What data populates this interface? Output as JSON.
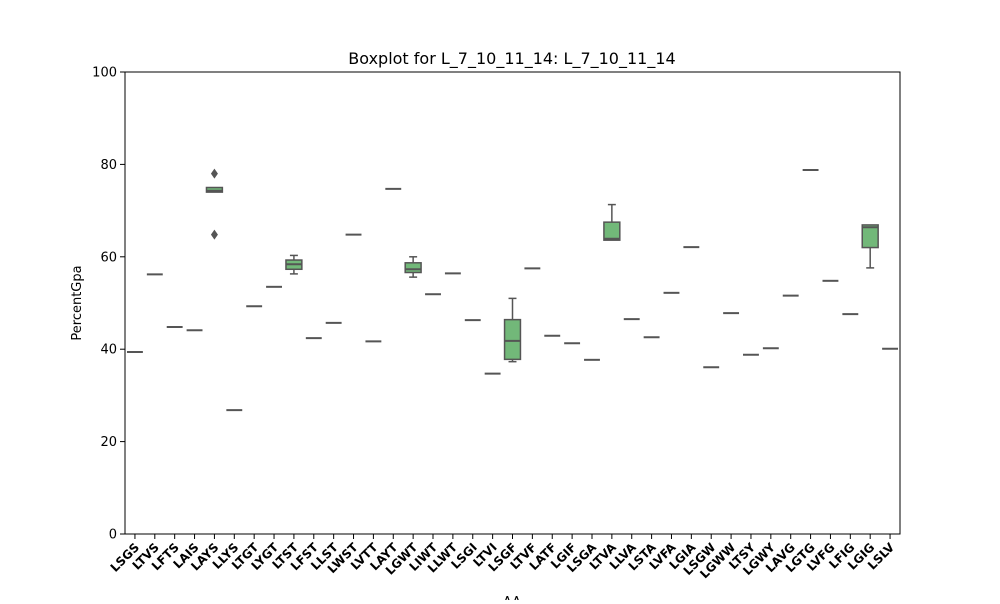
{
  "chart_data": {
    "type": "box",
    "title": "Boxplot for L_7_10_11_14: L_7_10_11_14",
    "xlabel": "AA",
    "ylabel": "PercentGpa",
    "ylim": [
      0,
      100
    ],
    "yticks": [
      0,
      20,
      40,
      60,
      80,
      100
    ],
    "grid": false,
    "box_color": "#72b879",
    "line_color": "#555555",
    "categories": [
      "LSGS",
      "LTVS",
      "LFTS",
      "LAIS",
      "LAYS",
      "LLYS",
      "LTGT",
      "LYGT",
      "LTST",
      "LFST",
      "LLST",
      "LWST",
      "LVTT",
      "LAYT",
      "LGWT",
      "LIWT",
      "LLWT",
      "LSGI",
      "LTVI",
      "LSGF",
      "LTVF",
      "LATF",
      "LGIF",
      "LSGA",
      "LTVA",
      "LLVA",
      "LSTA",
      "LVFA",
      "LGIA",
      "LSGW",
      "LGWW",
      "LTSY",
      "LGWY",
      "LAVG",
      "LGTG",
      "LVFG",
      "LFIG",
      "LGIG",
      "LSLV"
    ],
    "boxes": [
      {
        "q1": 39.4,
        "median": 39.4,
        "q3": 39.4,
        "whislo": 39.4,
        "whishi": 39.4,
        "fliers": []
      },
      {
        "q1": 56.2,
        "median": 56.2,
        "q3": 56.2,
        "whislo": 56.2,
        "whishi": 56.2,
        "fliers": []
      },
      {
        "q1": 44.8,
        "median": 44.8,
        "q3": 44.8,
        "whislo": 44.8,
        "whishi": 44.8,
        "fliers": []
      },
      {
        "q1": 44.1,
        "median": 44.1,
        "q3": 44.1,
        "whislo": 44.1,
        "whishi": 44.1,
        "fliers": []
      },
      {
        "q1": 74.0,
        "median": 74.3,
        "q3": 75.0,
        "whislo": 74.0,
        "whishi": 75.0,
        "fliers": [
          78.0,
          64.8
        ]
      },
      {
        "q1": 26.8,
        "median": 26.8,
        "q3": 26.8,
        "whislo": 26.8,
        "whishi": 26.8,
        "fliers": []
      },
      {
        "q1": 49.3,
        "median": 49.3,
        "q3": 49.3,
        "whislo": 49.3,
        "whishi": 49.3,
        "fliers": []
      },
      {
        "q1": 53.5,
        "median": 53.5,
        "q3": 53.5,
        "whislo": 53.5,
        "whishi": 53.5,
        "fliers": []
      },
      {
        "q1": 57.3,
        "median": 58.4,
        "q3": 59.3,
        "whislo": 56.3,
        "whishi": 60.3,
        "fliers": []
      },
      {
        "q1": 42.4,
        "median": 42.4,
        "q3": 42.4,
        "whislo": 42.4,
        "whishi": 42.4,
        "fliers": []
      },
      {
        "q1": 45.7,
        "median": 45.7,
        "q3": 45.7,
        "whislo": 45.7,
        "whishi": 45.7,
        "fliers": []
      },
      {
        "q1": 64.8,
        "median": 64.8,
        "q3": 64.8,
        "whislo": 64.8,
        "whishi": 64.8,
        "fliers": []
      },
      {
        "q1": 41.7,
        "median": 41.7,
        "q3": 41.7,
        "whislo": 41.7,
        "whishi": 41.7,
        "fliers": []
      },
      {
        "q1": 74.7,
        "median": 74.7,
        "q3": 74.7,
        "whislo": 74.7,
        "whishi": 74.7,
        "fliers": []
      },
      {
        "q1": 56.6,
        "median": 57.3,
        "q3": 58.7,
        "whislo": 55.6,
        "whishi": 60.0,
        "fliers": []
      },
      {
        "q1": 51.9,
        "median": 51.9,
        "q3": 51.9,
        "whislo": 51.9,
        "whishi": 51.9,
        "fliers": []
      },
      {
        "q1": 56.4,
        "median": 56.4,
        "q3": 56.4,
        "whislo": 56.4,
        "whishi": 56.4,
        "fliers": []
      },
      {
        "q1": 46.3,
        "median": 46.3,
        "q3": 46.3,
        "whislo": 46.3,
        "whishi": 46.3,
        "fliers": []
      },
      {
        "q1": 34.7,
        "median": 34.7,
        "q3": 34.7,
        "whislo": 34.7,
        "whishi": 34.7,
        "fliers": []
      },
      {
        "q1": 37.8,
        "median": 41.8,
        "q3": 46.4,
        "whislo": 37.3,
        "whishi": 51.0,
        "fliers": []
      },
      {
        "q1": 57.5,
        "median": 57.5,
        "q3": 57.5,
        "whislo": 57.5,
        "whishi": 57.5,
        "fliers": []
      },
      {
        "q1": 42.9,
        "median": 42.9,
        "q3": 42.9,
        "whislo": 42.9,
        "whishi": 42.9,
        "fliers": []
      },
      {
        "q1": 41.3,
        "median": 41.3,
        "q3": 41.3,
        "whislo": 41.3,
        "whishi": 41.3,
        "fliers": []
      },
      {
        "q1": 37.7,
        "median": 37.7,
        "q3": 37.7,
        "whislo": 37.7,
        "whishi": 37.7,
        "fliers": []
      },
      {
        "q1": 63.6,
        "median": 63.9,
        "q3": 67.5,
        "whislo": 63.6,
        "whishi": 71.3,
        "fliers": []
      },
      {
        "q1": 46.5,
        "median": 46.5,
        "q3": 46.5,
        "whislo": 46.5,
        "whishi": 46.5,
        "fliers": []
      },
      {
        "q1": 42.6,
        "median": 42.6,
        "q3": 42.6,
        "whislo": 42.6,
        "whishi": 42.6,
        "fliers": []
      },
      {
        "q1": 52.2,
        "median": 52.2,
        "q3": 52.2,
        "whislo": 52.2,
        "whishi": 52.2,
        "fliers": []
      },
      {
        "q1": 62.1,
        "median": 62.1,
        "q3": 62.1,
        "whislo": 62.1,
        "whishi": 62.1,
        "fliers": []
      },
      {
        "q1": 36.1,
        "median": 36.1,
        "q3": 36.1,
        "whislo": 36.1,
        "whishi": 36.1,
        "fliers": []
      },
      {
        "q1": 47.8,
        "median": 47.8,
        "q3": 47.8,
        "whislo": 47.8,
        "whishi": 47.8,
        "fliers": []
      },
      {
        "q1": 38.8,
        "median": 38.8,
        "q3": 38.8,
        "whislo": 38.8,
        "whishi": 38.8,
        "fliers": []
      },
      {
        "q1": 40.2,
        "median": 40.2,
        "q3": 40.2,
        "whislo": 40.2,
        "whishi": 40.2,
        "fliers": []
      },
      {
        "q1": 51.6,
        "median": 51.6,
        "q3": 51.6,
        "whislo": 51.6,
        "whishi": 51.6,
        "fliers": []
      },
      {
        "q1": 78.8,
        "median": 78.8,
        "q3": 78.8,
        "whislo": 78.8,
        "whishi": 78.8,
        "fliers": []
      },
      {
        "q1": 54.8,
        "median": 54.8,
        "q3": 54.8,
        "whislo": 54.8,
        "whishi": 54.8,
        "fliers": []
      },
      {
        "q1": 47.6,
        "median": 47.6,
        "q3": 47.6,
        "whislo": 47.6,
        "whishi": 47.6,
        "fliers": []
      },
      {
        "q1": 62.0,
        "median": 66.4,
        "q3": 66.9,
        "whislo": 57.6,
        "whishi": 66.9,
        "fliers": []
      },
      {
        "q1": 40.1,
        "median": 40.1,
        "q3": 40.1,
        "whislo": 40.1,
        "whishi": 40.1,
        "fliers": []
      }
    ]
  }
}
